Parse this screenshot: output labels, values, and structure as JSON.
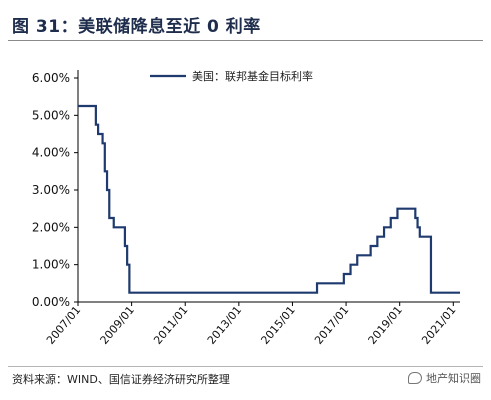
{
  "header": {
    "title": "图 31：美联储降息至近 0 利率"
  },
  "footer": {
    "source": "资料来源：WIND、国信证券经济研究所整理",
    "watermark": "地产知识圈"
  },
  "colors": {
    "line": "#1f3a6e",
    "title": "#1f2d4d"
  },
  "chart_data": {
    "type": "line",
    "title": "",
    "xlabel": "",
    "ylabel": "",
    "ylim": [
      0,
      0.06
    ],
    "xlim": [
      "2007-01",
      "2021-04"
    ],
    "yticks": [
      "0.00%",
      "1.00%",
      "2.00%",
      "3.00%",
      "4.00%",
      "5.00%",
      "6.00%"
    ],
    "xticks": [
      "2007/01",
      "2009/01",
      "2011/01",
      "2013/01",
      "2015/01",
      "2017/01",
      "2019/01",
      "2021/01"
    ],
    "legend_position": "top-center",
    "grid": false,
    "step": true,
    "series": [
      {
        "name": "美国：联邦基金目标利率",
        "points": [
          [
            "2007-01",
            0.0525
          ],
          [
            "2007-09",
            0.0475
          ],
          [
            "2007-10",
            0.045
          ],
          [
            "2007-12",
            0.0425
          ],
          [
            "2008-01",
            0.035
          ],
          [
            "2008-02",
            0.03
          ],
          [
            "2008-03",
            0.0225
          ],
          [
            "2008-05",
            0.02
          ],
          [
            "2008-10",
            0.015
          ],
          [
            "2008-11",
            0.01
          ],
          [
            "2008-12",
            0.0025
          ],
          [
            "2015-12",
            0.005
          ],
          [
            "2016-12",
            0.0075
          ],
          [
            "2017-03",
            0.01
          ],
          [
            "2017-06",
            0.0125
          ],
          [
            "2017-12",
            0.015
          ],
          [
            "2018-03",
            0.0175
          ],
          [
            "2018-06",
            0.02
          ],
          [
            "2018-09",
            0.0225
          ],
          [
            "2018-12",
            0.025
          ],
          [
            "2019-08",
            0.0225
          ],
          [
            "2019-09",
            0.02
          ],
          [
            "2019-10",
            0.0175
          ],
          [
            "2020-03",
            0.0125
          ],
          [
            "2020-03",
            0.0025
          ],
          [
            "2021-04",
            0.0025
          ]
        ]
      }
    ]
  }
}
